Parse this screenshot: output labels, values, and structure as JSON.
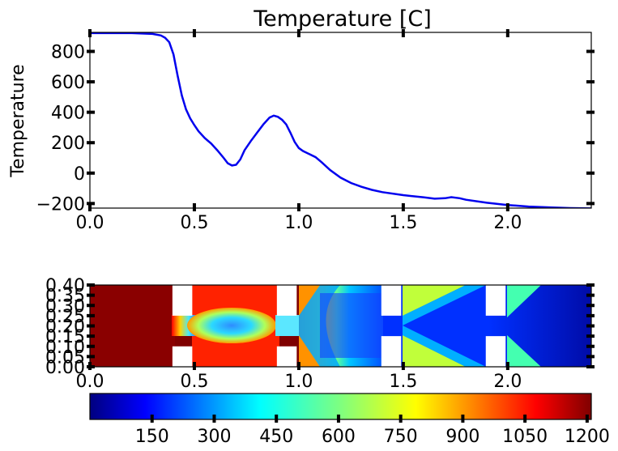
{
  "chart_data": [
    {
      "type": "line",
      "title": "Temperature [C]",
      "ylabel": "Temperature",
      "xlim": [
        0.0,
        2.4
      ],
      "ylim": [
        -230,
        925
      ],
      "xticks": [
        0.0,
        0.5,
        1.0,
        1.5,
        2.0
      ],
      "yticks": [
        -200,
        0,
        200,
        400,
        600,
        800
      ],
      "xtick_labels": [
        "0.0",
        "0.5",
        "1.0",
        "1.5",
        "2.0"
      ],
      "ytick_labels": [
        "−200",
        "0",
        "200",
        "400",
        "600",
        "800"
      ],
      "color": "#0000ee",
      "series": [
        {
          "x": [
            0.0,
            0.2,
            0.3,
            0.34,
            0.36,
            0.38,
            0.4,
            0.42,
            0.44,
            0.46,
            0.48,
            0.5,
            0.52,
            0.55,
            0.58,
            0.61,
            0.64,
            0.66,
            0.68,
            0.7,
            0.72,
            0.74,
            0.77,
            0.8,
            0.83,
            0.86,
            0.88,
            0.9,
            0.92,
            0.94,
            0.96,
            0.98,
            1.0,
            1.02,
            1.05,
            1.08,
            1.11,
            1.15,
            1.2,
            1.25,
            1.3,
            1.35,
            1.4,
            1.5,
            1.6,
            1.65,
            1.7,
            1.73,
            1.77,
            1.8,
            1.9,
            2.0,
            2.1,
            2.2,
            2.3,
            2.4
          ],
          "y": [
            920,
            920,
            915,
            905,
            890,
            860,
            780,
            640,
            510,
            420,
            360,
            315,
            275,
            230,
            195,
            150,
            100,
            65,
            50,
            55,
            90,
            150,
            210,
            265,
            320,
            365,
            378,
            370,
            350,
            320,
            265,
            205,
            165,
            145,
            125,
            105,
            70,
            20,
            -30,
            -65,
            -90,
            -110,
            -125,
            -145,
            -160,
            -168,
            -165,
            -158,
            -165,
            -175,
            -195,
            -210,
            -220,
            -225,
            -230,
            -232
          ]
        }
      ]
    },
    {
      "type": "heatmap",
      "xlim": [
        0.0,
        2.4
      ],
      "ylim": [
        0.0,
        0.4
      ],
      "xticks": [
        0.0,
        0.5,
        1.0,
        1.5,
        2.0
      ],
      "yticks": [
        0.0,
        0.05,
        0.1,
        0.15,
        0.2,
        0.25,
        0.3,
        0.35,
        0.4
      ],
      "xtick_labels": [
        "0.0",
        "0.5",
        "1.0",
        "1.5",
        "2.0"
      ],
      "ytick_labels": [
        "0.00",
        "0.05",
        "0.10",
        "0.15",
        "0.20",
        "0.25",
        "0.30",
        "0.35",
        "0.40"
      ],
      "colormap": "jet",
      "colorbar": {
        "min": 0,
        "max": 1210,
        "ticks": [
          150,
          300,
          450,
          600,
          750,
          900,
          1050,
          1200
        ],
        "tick_labels": [
          "150",
          "300",
          "450",
          "600",
          "750",
          "900",
          "1050",
          "1200"
        ]
      },
      "obstacles": [
        {
          "x": [
            0.395,
            0.49
          ],
          "y": [
            0.0,
            0.1
          ]
        },
        {
          "x": [
            0.395,
            0.49
          ],
          "y": [
            0.25,
            0.4
          ]
        },
        {
          "x": [
            0.895,
            0.99
          ],
          "y": [
            0.0,
            0.1
          ]
        },
        {
          "x": [
            0.895,
            0.99
          ],
          "y": [
            0.25,
            0.4
          ]
        },
        {
          "x": [
            1.395,
            1.49
          ],
          "y": [
            0.0,
            0.15
          ]
        },
        {
          "x": [
            1.395,
            1.49
          ],
          "y": [
            0.25,
            0.4
          ]
        },
        {
          "x": [
            1.895,
            1.99
          ],
          "y": [
            0.0,
            0.15
          ]
        },
        {
          "x": [
            1.895,
            1.99
          ],
          "y": [
            0.25,
            0.4
          ]
        }
      ]
    }
  ]
}
